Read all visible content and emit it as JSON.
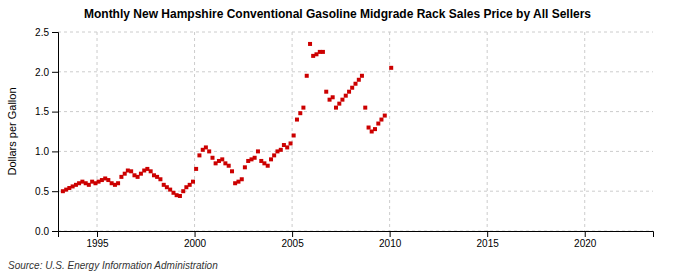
{
  "chart_data": {
    "type": "scatter",
    "title": "Monthly New Hampshire Conventional Gasoline Midgrade Rack Sales Price by All Sellers",
    "ylabel": "Dollars per Gallon",
    "annotations": [
      "Source: U.S. Energy Information Administration"
    ],
    "color": "#cc0000",
    "marker": "square",
    "grid": true,
    "xlim": [
      1993.0,
      2023.5
    ],
    "ylim": [
      0.0,
      2.5
    ],
    "xticks": [
      1995,
      2000,
      2005,
      2010,
      2015,
      2020
    ],
    "yticks": [
      {
        "value": 0.0,
        "label": "0.0"
      },
      0.5,
      {
        "value": 1.0,
        "label": "1.0"
      },
      1.5,
      {
        "value": 2.0,
        "label": "2.0"
      },
      2.5
    ],
    "x": [
      1993.25,
      1993.42,
      1993.58,
      1993.75,
      1993.92,
      1994.08,
      1994.25,
      1994.42,
      1994.58,
      1994.75,
      1994.92,
      1995.08,
      1995.25,
      1995.42,
      1995.58,
      1995.75,
      1995.92,
      1996.08,
      1996.25,
      1996.42,
      1996.58,
      1996.75,
      1996.92,
      1997.08,
      1997.25,
      1997.42,
      1997.58,
      1997.75,
      1997.92,
      1998.08,
      1998.25,
      1998.42,
      1998.58,
      1998.75,
      1998.92,
      1999.08,
      1999.25,
      1999.42,
      1999.58,
      1999.75,
      1999.92,
      2000.08,
      2000.25,
      2000.42,
      2000.58,
      2000.75,
      2000.92,
      2001.08,
      2001.25,
      2001.42,
      2001.58,
      2001.75,
      2001.92,
      2002.08,
      2002.25,
      2002.42,
      2002.58,
      2002.75,
      2002.92,
      2003.08,
      2003.25,
      2003.42,
      2003.58,
      2003.75,
      2003.92,
      2004.08,
      2004.25,
      2004.42,
      2004.58,
      2004.75,
      2004.92,
      2005.08,
      2005.25,
      2005.42,
      2005.58,
      2005.75,
      2005.92,
      2006.08,
      2006.25,
      2006.42,
      2006.58,
      2006.75,
      2006.92,
      2007.08,
      2007.25,
      2007.42,
      2007.58,
      2007.75,
      2007.92,
      2008.08,
      2008.25,
      2008.42,
      2008.58,
      2008.75,
      2008.92,
      2009.08,
      2009.25,
      2009.42,
      2009.58,
      2009.75,
      2010.08
    ],
    "values": [
      0.5,
      0.52,
      0.54,
      0.56,
      0.58,
      0.6,
      0.62,
      0.6,
      0.58,
      0.62,
      0.6,
      0.62,
      0.64,
      0.66,
      0.64,
      0.6,
      0.58,
      0.6,
      0.68,
      0.72,
      0.76,
      0.75,
      0.7,
      0.68,
      0.72,
      0.76,
      0.78,
      0.75,
      0.7,
      0.68,
      0.65,
      0.58,
      0.55,
      0.52,
      0.48,
      0.45,
      0.44,
      0.5,
      0.55,
      0.58,
      0.62,
      0.78,
      0.95,
      1.02,
      1.05,
      1.0,
      0.92,
      0.85,
      0.88,
      0.9,
      0.85,
      0.82,
      0.75,
      0.6,
      0.62,
      0.65,
      0.8,
      0.88,
      0.9,
      0.92,
      1.0,
      0.88,
      0.85,
      0.82,
      0.9,
      0.95,
      1.0,
      1.02,
      1.08,
      1.05,
      1.1,
      1.2,
      1.4,
      1.48,
      1.55,
      1.95,
      2.35,
      2.2,
      2.22,
      2.25,
      2.25,
      1.75,
      1.65,
      1.68,
      1.55,
      1.6,
      1.65,
      1.7,
      1.75,
      1.8,
      1.85,
      1.9,
      1.95,
      1.55,
      1.3,
      1.25,
      1.28,
      1.35,
      1.4,
      1.45,
      2.05
    ]
  }
}
